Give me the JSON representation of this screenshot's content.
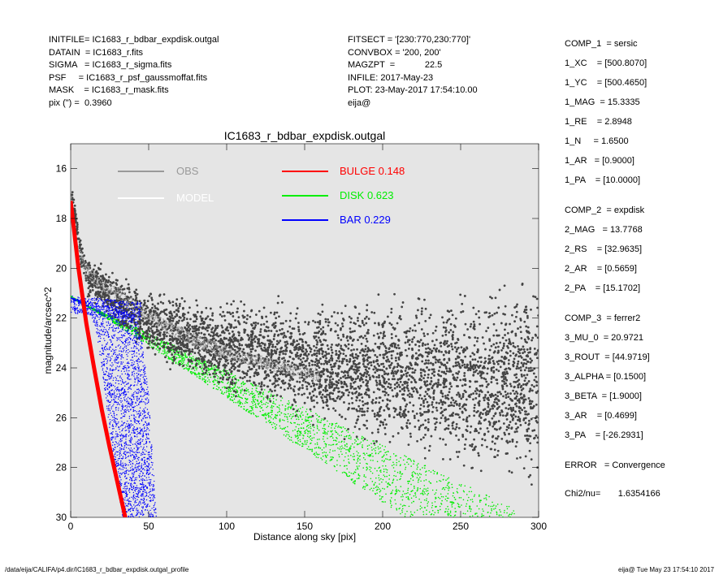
{
  "header": {
    "left": [
      "INITFILE= IC1683_r_bdbar_expdisk.outgal",
      "DATAIN  = IC1683_r.fits",
      "SIGMA   = IC1683_r_sigma.fits",
      "PSF     = IC1683_r_psf_gaussmoffat.fits",
      "MASK    = IC1683_r_mask.fits",
      "pix (\") =  0.3960"
    ],
    "mid": [
      "FITSECT = '[230:770,230:770]'",
      "CONVBOX = '200, 200'",
      "MAGZPT  =            22.5",
      "INFILE: 2017-May-23",
      "PLOT: 23-May-2017 17:54:10.00",
      "eija@"
    ]
  },
  "params": [
    "COMP_1  = sersic",
    "1_XC    = [500.8070]",
    "1_YC    = [500.4650]",
    "1_MAG  = 15.3335",
    "1_RE    = 2.8948",
    "1_N     = 1.6500",
    "1_AR   = [0.9000]",
    "1_PA    = [10.0000]",
    "COMP_2  = expdisk",
    "2_MAG   = 13.7768",
    "2_RS    = [32.9635]",
    "2_AR    = [0.5659]",
    "2_PA    = [15.1702]",
    "COMP_3  = ferrer2",
    "3_MU_0  = 20.9721",
    "3_ROUT  = [44.9719]",
    "3_ALPHA = [0.1500]",
    "3_BETA  = [1.9000]",
    "3_AR    = [0.4699]",
    "3_PA    = [-26.2931]",
    "ERROR   = Convergence",
    "Chi2/nu=       1.6354166"
  ],
  "footer": {
    "left": "/data/eija/CALIFA/p4.dir/IC1683_r_bdbar_expdisk.outgal_profile",
    "right": "eija@  Tue May 23 17:54:10 2017"
  },
  "colors": {
    "obs": "#444444",
    "model": "#9a9a9a",
    "bulge": "#ff0000",
    "disk": "#00ee00",
    "bar": "#0000ff",
    "plot_bg": "#e5e5e5"
  },
  "chart_data": {
    "type": "scatter",
    "title": "IC1683_r_bdbar_expdisk.outgal",
    "xlabel": "Distance along sky [pix]",
    "ylabel": "magnitude/arcsec^2",
    "xlim": [
      0,
      300
    ],
    "ylim": [
      30,
      15
    ],
    "y_inverted": true,
    "xticks": [
      0,
      50,
      100,
      150,
      200,
      250,
      300
    ],
    "yticks": [
      16,
      18,
      20,
      22,
      24,
      26,
      28,
      30
    ],
    "legend": [
      {
        "label": "OBS",
        "color": "#9a9a9a"
      },
      {
        "label": "MODEL",
        "color": "#ffffff"
      },
      {
        "label": "BULGE",
        "value": "0.148",
        "color": "#ff0000"
      },
      {
        "label": "DISK",
        "value": "0.623",
        "color": "#00ee00"
      },
      {
        "label": "BAR",
        "value": "0.229",
        "color": "#0000ff"
      }
    ],
    "series": [
      {
        "name": "OBS",
        "points": [
          [
            0,
            17.2
          ],
          [
            2,
            17.6
          ],
          [
            4,
            18.4
          ],
          [
            6,
            19.2
          ],
          [
            8,
            19.8
          ],
          [
            10,
            20.2
          ],
          [
            15,
            20.5
          ],
          [
            20,
            20.8
          ],
          [
            25,
            21.0
          ],
          [
            30,
            21.3
          ],
          [
            40,
            21.8
          ],
          [
            60,
            22.5
          ],
          [
            80,
            22.9
          ],
          [
            100,
            23.2
          ],
          [
            150,
            23.8
          ],
          [
            200,
            24.2
          ],
          [
            250,
            24.5
          ],
          [
            300,
            24.6
          ]
        ]
      },
      {
        "name": "MODEL",
        "points": [
          [
            0,
            17.2
          ],
          [
            5,
            19.3
          ],
          [
            10,
            20.1
          ],
          [
            20,
            20.7
          ],
          [
            30,
            21.0
          ],
          [
            40,
            21.5
          ],
          [
            60,
            22.3
          ],
          [
            80,
            22.9
          ],
          [
            100,
            23.4
          ],
          [
            150,
            24.2
          ],
          [
            200,
            24.6
          ],
          [
            250,
            24.9
          ],
          [
            300,
            25.1
          ]
        ]
      },
      {
        "name": "BULGE",
        "points": [
          [
            0,
            17.3
          ],
          [
            5,
            20.0
          ],
          [
            10,
            22.2
          ],
          [
            15,
            24.0
          ],
          [
            20,
            25.7
          ],
          [
            25,
            27.2
          ],
          [
            30,
            28.6
          ],
          [
            35,
            30.0
          ]
        ]
      },
      {
        "name": "DISK",
        "points_upper": [
          [
            0,
            21.1
          ],
          [
            50,
            23.1
          ],
          [
            100,
            25.2
          ],
          [
            150,
            27.3
          ],
          [
            200,
            29.4
          ],
          [
            215,
            30.0
          ]
        ],
        "points_lower": [
          [
            0,
            21.2
          ],
          [
            50,
            22.6
          ],
          [
            100,
            24.1
          ],
          [
            150,
            25.6
          ],
          [
            200,
            27.1
          ],
          [
            250,
            28.6
          ],
          [
            280,
            29.5
          ]
        ]
      },
      {
        "name": "BAR",
        "points_inner": [
          [
            0,
            21.2
          ],
          [
            10,
            21.6
          ],
          [
            15,
            22.2
          ],
          [
            20,
            24.0
          ],
          [
            25,
            26.5
          ],
          [
            30,
            28.5
          ],
          [
            33,
            30.0
          ]
        ],
        "points_outer": [
          [
            0,
            21.2
          ],
          [
            20,
            21.5
          ],
          [
            40,
            21.8
          ],
          [
            45,
            22.5
          ],
          [
            50,
            25.0
          ],
          [
            55,
            30.0
          ]
        ]
      }
    ]
  }
}
